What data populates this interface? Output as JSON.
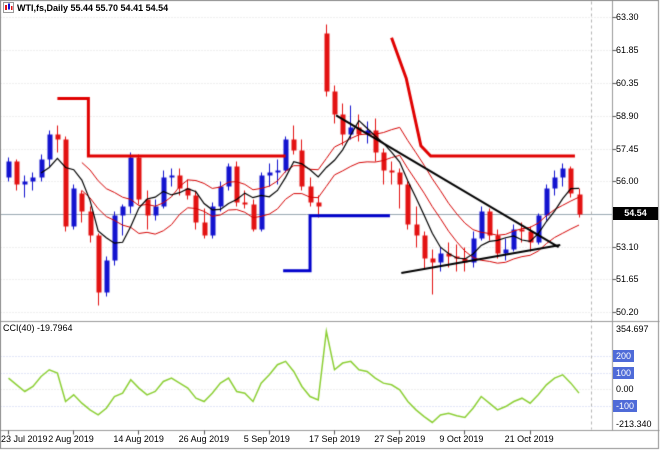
{
  "header": {
    "title": "WTI,fs,Daily 55.44 55.70 54.41 54.54"
  },
  "price_axis": {
    "ticks": [
      {
        "value": 63.3,
        "label": "63.30"
      },
      {
        "value": 61.85,
        "label": "61.85"
      },
      {
        "value": 60.35,
        "label": "60.35"
      },
      {
        "value": 58.9,
        "label": "58.90"
      },
      {
        "value": 57.45,
        "label": "57.45"
      },
      {
        "value": 56.0,
        "label": "56.00"
      },
      {
        "value": 54.55,
        "label": ""
      },
      {
        "value": 53.1,
        "label": "53.10"
      },
      {
        "value": 51.65,
        "label": "51.65"
      },
      {
        "value": 50.2,
        "label": "50.20"
      }
    ],
    "current_price": "54.54"
  },
  "time_axis": {
    "ticks": [
      {
        "index": 0,
        "label": "23 Jul 2019"
      },
      {
        "index": 8,
        "label": "2 Aug 2019"
      },
      {
        "index": 16,
        "label": "14 Aug 2019"
      },
      {
        "index": 24,
        "label": "26 Aug 2019"
      },
      {
        "index": 32,
        "label": "5 Sep 2019"
      },
      {
        "index": 40,
        "label": "17 Sep 2019"
      },
      {
        "index": 48,
        "label": "27 Sep 2019"
      },
      {
        "index": 56,
        "label": "9 Oct 2019"
      },
      {
        "index": 64,
        "label": "21 Oct 2019"
      }
    ]
  },
  "chart_data": {
    "type": "candlestick",
    "symbol": "WTI,fs",
    "timeframe": "Daily",
    "ohlc_current": {
      "open": 55.44,
      "high": 55.7,
      "low": 54.41,
      "close": 54.54
    },
    "bid": 54.54,
    "price_range": [
      50.2,
      63.3
    ],
    "candles": [
      [
        56.2,
        57.1,
        56.0,
        56.9
      ],
      [
        56.9,
        57.0,
        55.6,
        55.9
      ],
      [
        55.9,
        56.3,
        55.3,
        56.0
      ],
      [
        56.0,
        56.4,
        55.6,
        56.2
      ],
      [
        56.2,
        57.2,
        56.0,
        57.0
      ],
      [
        57.0,
        58.3,
        56.7,
        58.1
      ],
      [
        58.1,
        58.5,
        57.3,
        57.9
      ],
      [
        57.9,
        58.0,
        53.8,
        54.0
      ],
      [
        54.0,
        55.9,
        53.9,
        55.7
      ],
      [
        55.5,
        55.6,
        54.2,
        54.7
      ],
      [
        54.7,
        54.9,
        53.3,
        53.6
      ],
      [
        53.6,
        53.7,
        50.5,
        51.1
      ],
      [
        51.1,
        52.7,
        50.9,
        52.5
      ],
      [
        52.5,
        54.7,
        52.3,
        54.5
      ],
      [
        54.5,
        55.0,
        53.6,
        54.9
      ],
      [
        54.9,
        57.3,
        54.6,
        57.1
      ],
      [
        57.1,
        57.2,
        55.0,
        55.2
      ],
      [
        55.2,
        55.6,
        53.9,
        54.5
      ],
      [
        54.5,
        55.2,
        54.3,
        54.9
      ],
      [
        54.9,
        56.5,
        54.8,
        56.2
      ],
      [
        56.2,
        56.6,
        55.8,
        56.3
      ],
      [
        56.3,
        56.6,
        55.4,
        55.7
      ],
      [
        55.7,
        56.1,
        55.2,
        55.4
      ],
      [
        55.4,
        55.6,
        53.9,
        54.2
      ],
      [
        54.2,
        54.8,
        53.5,
        53.6
      ],
      [
        53.6,
        55.1,
        53.5,
        54.9
      ],
      [
        54.9,
        56.0,
        54.7,
        55.8
      ],
      [
        55.8,
        56.8,
        55.6,
        56.7
      ],
      [
        56.7,
        56.9,
        54.9,
        55.1
      ],
      [
        55.1,
        55.6,
        54.8,
        55.0
      ],
      [
        55.0,
        55.2,
        53.8,
        53.9
      ],
      [
        53.9,
        56.4,
        53.8,
        56.3
      ],
      [
        56.3,
        56.8,
        55.8,
        56.4
      ],
      [
        56.4,
        57.0,
        55.9,
        56.5
      ],
      [
        56.5,
        58.0,
        56.4,
        57.9
      ],
      [
        57.9,
        58.5,
        57.2,
        57.4
      ],
      [
        57.4,
        57.9,
        55.6,
        55.8
      ],
      [
        55.8,
        56.2,
        54.9,
        55.1
      ],
      [
        55.1,
        55.4,
        54.4,
        54.9
      ],
      [
        62.6,
        63.0,
        59.8,
        60.0
      ],
      [
        60.0,
        60.3,
        58.6,
        59.0
      ],
      [
        59.0,
        59.5,
        57.6,
        58.1
      ],
      [
        58.1,
        59.4,
        57.9,
        58.4
      ],
      [
        58.4,
        59.0,
        57.8,
        58.1
      ],
      [
        58.1,
        58.7,
        57.7,
        58.3
      ],
      [
        58.3,
        58.8,
        56.9,
        57.3
      ],
      [
        57.3,
        57.5,
        55.9,
        56.5
      ],
      [
        56.5,
        56.9,
        55.9,
        56.4
      ],
      [
        56.4,
        56.6,
        54.8,
        55.9
      ],
      [
        55.9,
        56.0,
        53.9,
        54.1
      ],
      [
        54.1,
        54.9,
        53.1,
        53.6
      ],
      [
        53.6,
        53.8,
        52.1,
        52.6
      ],
      [
        52.6,
        53.0,
        51.0,
        52.4
      ],
      [
        52.4,
        53.1,
        52.0,
        52.8
      ],
      [
        52.8,
        53.3,
        52.2,
        52.7
      ],
      [
        52.7,
        53.2,
        52.0,
        52.6
      ],
      [
        52.6,
        53.1,
        52.0,
        52.4
      ],
      [
        52.4,
        53.8,
        52.2,
        53.5
      ],
      [
        53.5,
        54.9,
        53.4,
        54.7
      ],
      [
        54.7,
        54.8,
        53.4,
        53.6
      ],
      [
        53.6,
        53.9,
        52.6,
        52.8
      ],
      [
        52.8,
        53.5,
        52.5,
        53.0
      ],
      [
        53.0,
        54.1,
        52.9,
        53.9
      ],
      [
        53.9,
        54.2,
        53.3,
        53.8
      ],
      [
        53.8,
        54.0,
        52.9,
        53.3
      ],
      [
        53.3,
        54.6,
        53.2,
        54.5
      ],
      [
        54.5,
        55.9,
        54.3,
        55.7
      ],
      [
        55.7,
        56.5,
        55.4,
        56.2
      ],
      [
        56.2,
        56.8,
        55.8,
        56.6
      ],
      [
        56.6,
        56.7,
        55.3,
        55.5
      ],
      [
        55.44,
        55.7,
        54.41,
        54.54
      ]
    ],
    "moving_averages": [
      {
        "name": "ma-black",
        "method": "sma",
        "period": 5,
        "source": "close",
        "color": "#000000",
        "width": 1.2
      }
    ],
    "envelope": {
      "period": 10,
      "offset": 0.62,
      "color": "#d40000",
      "width": 1
    },
    "objects": [
      {
        "name": "red-resistance-step",
        "color": "#e00000",
        "width": 3,
        "points": [
          [
            6.0,
            59.7
          ],
          [
            9.8,
            59.7
          ],
          [
            9.8,
            57.15
          ],
          [
            34.0,
            57.15
          ]
        ]
      },
      {
        "name": "red-resistance-descending",
        "color": "#e00000",
        "width": 3,
        "points": [
          [
            47.0,
            62.4
          ],
          [
            48.8,
            60.6
          ],
          [
            50.6,
            57.6
          ],
          [
            51.8,
            57.15
          ],
          [
            69.5,
            57.15
          ]
        ]
      },
      {
        "name": "blue-support-step",
        "color": "#0000cc",
        "width": 3,
        "points": [
          [
            33.7,
            52.05
          ],
          [
            37.0,
            52.05
          ],
          [
            37.0,
            54.5
          ],
          [
            46.8,
            54.5
          ]
        ]
      },
      {
        "name": "black-trendline-down",
        "color": "#000000",
        "width": 2,
        "points": [
          [
            40.2,
            58.95
          ],
          [
            67.5,
            53.1
          ]
        ]
      },
      {
        "name": "black-trendline-up",
        "color": "#000000",
        "width": 2,
        "points": [
          [
            48.2,
            51.95
          ],
          [
            67.7,
            53.2
          ]
        ]
      }
    ],
    "cci": {
      "label": "CCI(40) -19.7964",
      "period": 40,
      "value": -19.7964,
      "color": "#8ccf35",
      "scale_max": 354.697,
      "scale_min": -213.34,
      "scale_max_label": "354.697",
      "scale_min_label": "-213.340",
      "levels": [
        {
          "value": 200,
          "label": "200",
          "boxed": true
        },
        {
          "value": 100,
          "label": "100",
          "boxed": true
        },
        {
          "value": 0,
          "label": "0.00",
          "boxed": false
        },
        {
          "value": -100,
          "label": "-100",
          "boxed": true
        }
      ],
      "values": [
        70,
        30,
        -10,
        20,
        80,
        120,
        100,
        -70,
        -30,
        -80,
        -120,
        -150,
        -110,
        -40,
        -20,
        60,
        10,
        -30,
        -10,
        50,
        70,
        40,
        10,
        -50,
        -70,
        -20,
        40,
        70,
        -10,
        -20,
        -70,
        40,
        90,
        150,
        170,
        110,
        20,
        -40,
        -60,
        350,
        120,
        160,
        170,
        120,
        110,
        70,
        40,
        30,
        0,
        -70,
        -120,
        -160,
        -195,
        -150,
        -140,
        -155,
        -165,
        -110,
        -40,
        -80,
        -120,
        -100,
        -70,
        -50,
        -80,
        -30,
        30,
        70,
        90,
        40,
        -19.8
      ]
    }
  },
  "colors": {
    "up": "#1313cf",
    "down": "#e31212",
    "grid": "#dcdcdc",
    "level_line": "#c3cdf0",
    "bid_line": "#9aa8b2",
    "dashed_line": "#b4b4b4",
    "separator": "#989898",
    "border": "#8c8c8c",
    "level_box": "#4f6bd8",
    "price_box_bg": "#000000",
    "price_box_text": "#ffffff"
  }
}
